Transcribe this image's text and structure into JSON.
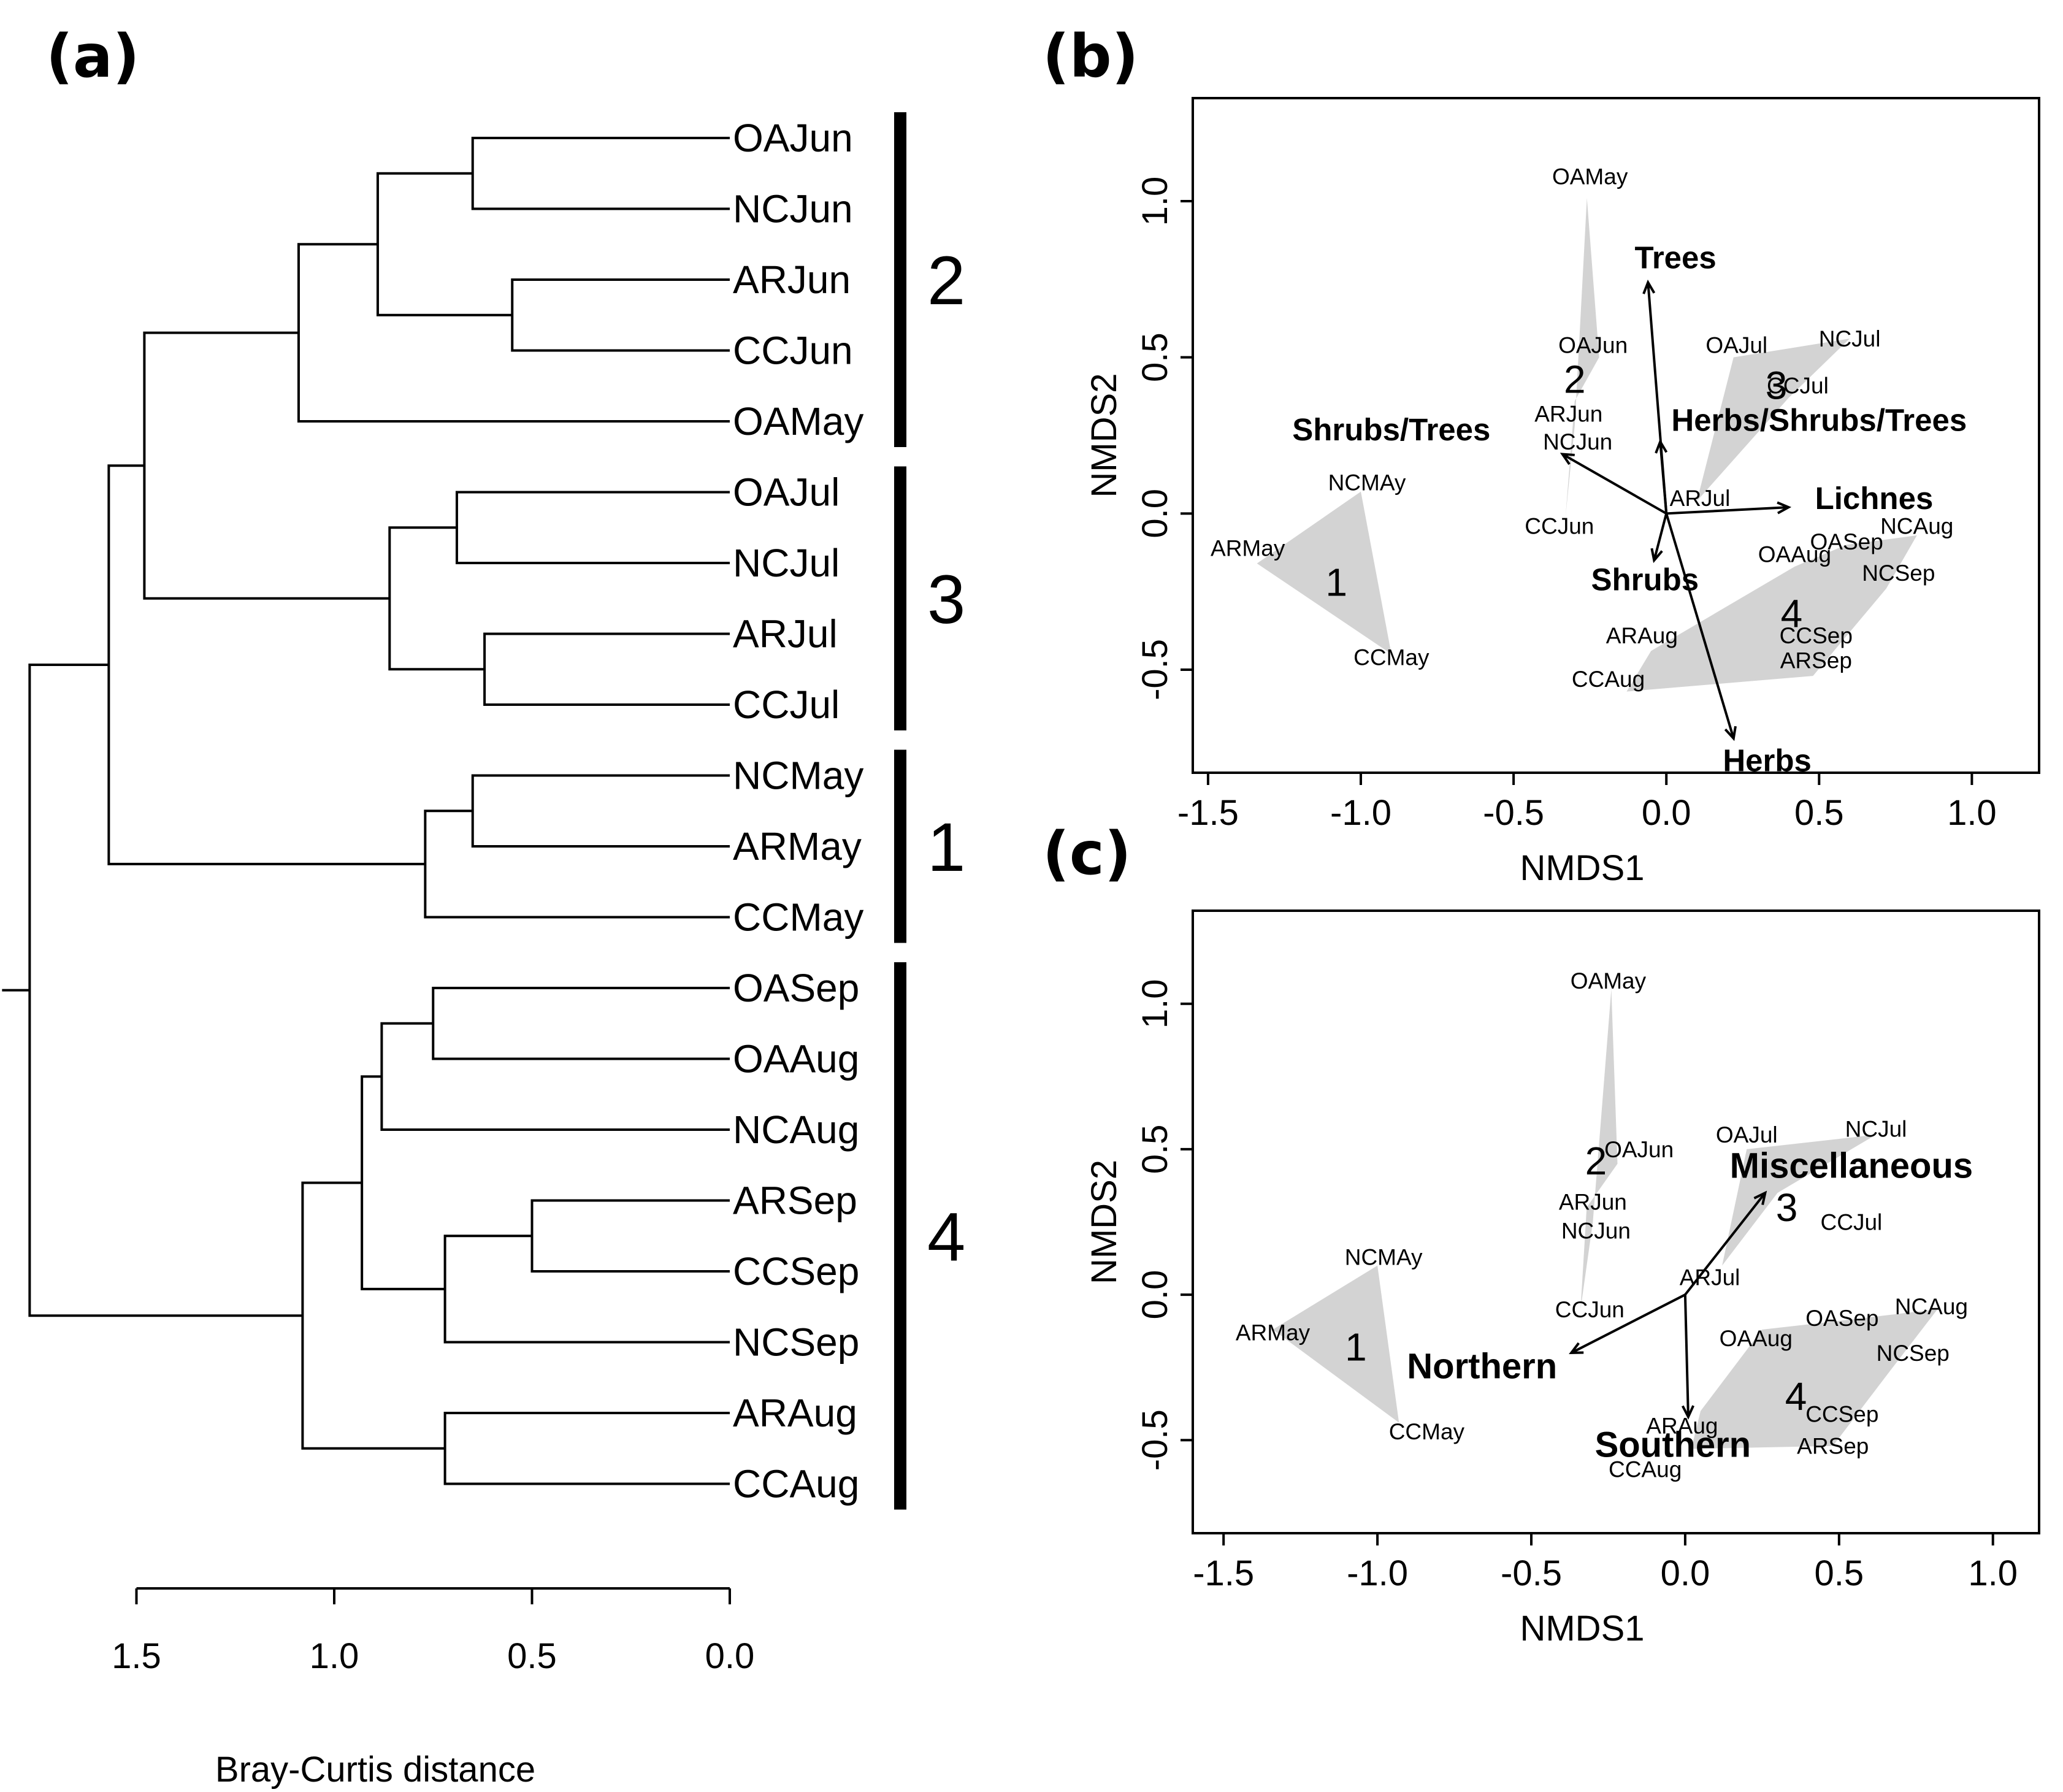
{
  "figure": {
    "panel_a": {
      "letter": "(a)"
    },
    "panel_b": {
      "letter": "(b)"
    },
    "panel_c": {
      "letter": "(c)"
    }
  },
  "chart_data": [
    {
      "panel": "a",
      "type": "dendrogram",
      "xlabel": "Bray-Curtis distance",
      "axis_range": [
        1.5,
        0.0
      ],
      "ticks": [
        1.5,
        1.0,
        0.5,
        0.0
      ],
      "tick_labels": [
        "1.5",
        "1.0",
        "0.5",
        "0.0"
      ],
      "leaves": [
        "OAJun",
        "NCJun",
        "ARJun",
        "CCJun",
        "OAMay",
        "OAJul",
        "NCJul",
        "ARJul",
        "CCJul",
        "NCMay",
        "ARMay",
        "CCMay",
        "OASep",
        "OAAug",
        "NCAug",
        "ARSep",
        "CCSep",
        "NCSep",
        "ARAug",
        "CCAug"
      ],
      "merges": [
        {
          "id": "m1",
          "left": "OAJun",
          "right": "NCJun",
          "height": 0.65
        },
        {
          "id": "m2",
          "left": "ARJun",
          "right": "CCJun",
          "height": 0.55
        },
        {
          "id": "m3",
          "left": "m1",
          "right": "m2",
          "height": 0.89
        },
        {
          "id": "m4",
          "left": "m3",
          "right": "OAMay",
          "height": 1.09
        },
        {
          "id": "m5",
          "left": "OAJul",
          "right": "NCJul",
          "height": 0.69
        },
        {
          "id": "m6",
          "left": "ARJul",
          "right": "CCJul",
          "height": 0.62
        },
        {
          "id": "m7",
          "left": "m5",
          "right": "m6",
          "height": 0.86
        },
        {
          "id": "m8",
          "left": "m4",
          "right": "m7",
          "height": 1.48
        },
        {
          "id": "m9",
          "left": "NCMay",
          "right": "ARMay",
          "height": 0.65
        },
        {
          "id": "m10",
          "left": "m9",
          "right": "CCMay",
          "height": 0.77
        },
        {
          "id": "m11",
          "left": "m8",
          "right": "m10",
          "height": 1.57
        },
        {
          "id": "m12",
          "left": "OASep",
          "right": "OAAug",
          "height": 0.75
        },
        {
          "id": "m13",
          "left": "m12",
          "right": "NCAug",
          "height": 0.88
        },
        {
          "id": "m14",
          "left": "ARSep",
          "right": "CCSep",
          "height": 0.5
        },
        {
          "id": "m15",
          "left": "m14",
          "right": "NCSep",
          "height": 0.72
        },
        {
          "id": "m16",
          "left": "m13",
          "right": "m15",
          "height": 0.93
        },
        {
          "id": "m17",
          "left": "ARAug",
          "right": "CCAug",
          "height": 0.72
        },
        {
          "id": "m18",
          "left": "m16",
          "right": "m17",
          "height": 1.08
        },
        {
          "id": "m19",
          "left": "m11",
          "right": "m18",
          "height": 1.77
        }
      ],
      "clusters": [
        {
          "label": "2",
          "from": "OAJun",
          "to": "OAMay"
        },
        {
          "label": "3",
          "from": "OAJul",
          "to": "CCJul"
        },
        {
          "label": "1",
          "from": "NCMay",
          "to": "CCMay"
        },
        {
          "label": "4",
          "from": "OASep",
          "to": "CCAug"
        }
      ]
    },
    {
      "panel": "b",
      "type": "scatter",
      "xlabel": "NMDS1",
      "ylabel": "NMDS2",
      "xlim": [
        -1.55,
        1.22
      ],
      "ylim": [
        -0.83,
        1.33
      ],
      "xticks": [
        -1.5,
        -1.0,
        -0.5,
        0.0,
        0.5,
        1.0
      ],
      "xtick_labels": [
        "-1.5",
        "-1.0",
        "-0.5",
        "0.0",
        "0.5",
        "1.0"
      ],
      "yticks": [
        -0.5,
        0.0,
        0.5,
        1.0
      ],
      "ytick_labels": [
        "-0.5",
        "0.0",
        "0.5",
        "1.0"
      ],
      "points": [
        {
          "label": "OAMay",
          "x": -0.25,
          "y": 1.08
        },
        {
          "label": "OAJun",
          "x": -0.24,
          "y": 0.54
        },
        {
          "label": "ARJun",
          "x": -0.32,
          "y": 0.32
        },
        {
          "label": "NCJun",
          "x": -0.29,
          "y": 0.23
        },
        {
          "label": "CCJun",
          "x": -0.35,
          "y": -0.04
        },
        {
          "label": "NCMAy",
          "x": -0.98,
          "y": 0.1
        },
        {
          "label": "ARMay",
          "x": -1.37,
          "y": -0.11
        },
        {
          "label": "CCMay",
          "x": -0.9,
          "y": -0.46
        },
        {
          "label": "OAJul",
          "x": 0.23,
          "y": 0.54
        },
        {
          "label": "NCJul",
          "x": 0.6,
          "y": 0.56
        },
        {
          "label": "CCJul",
          "x": 0.43,
          "y": 0.41
        },
        {
          "label": "ARJul",
          "x": 0.11,
          "y": 0.05
        },
        {
          "label": "OAAug",
          "x": 0.42,
          "y": -0.13
        },
        {
          "label": "OASep",
          "x": 0.59,
          "y": -0.09
        },
        {
          "label": "NCAug",
          "x": 0.82,
          "y": -0.04
        },
        {
          "label": "NCSep",
          "x": 0.76,
          "y": -0.19
        },
        {
          "label": "ARAug",
          "x": -0.08,
          "y": -0.39
        },
        {
          "label": "CCSep",
          "x": 0.49,
          "y": -0.39
        },
        {
          "label": "ARSep",
          "x": 0.49,
          "y": -0.47
        },
        {
          "label": "CCAug",
          "x": -0.19,
          "y": -0.53
        }
      ],
      "groups": [
        {
          "label": "1",
          "x": -1.08,
          "y": -0.22,
          "hull": [
            [
              -1.34,
              -0.16
            ],
            [
              -1.0,
              0.07
            ],
            [
              -0.9,
              -0.45
            ]
          ]
        },
        {
          "label": "2",
          "x": -0.3,
          "y": 0.43,
          "hull": [
            [
              -0.26,
              1.01
            ],
            [
              -0.22,
              0.5
            ],
            [
              -0.3,
              0.36
            ],
            [
              -0.33,
              -0.01
            ],
            [
              -0.3,
              0.28
            ]
          ]
        },
        {
          "label": "3",
          "x": 0.36,
          "y": 0.41,
          "hull": [
            [
              0.22,
              0.5
            ],
            [
              0.6,
              0.56
            ],
            [
              0.4,
              0.37
            ],
            [
              0.1,
              0.04
            ]
          ]
        },
        {
          "label": "4",
          "x": 0.41,
          "y": -0.32,
          "hull": [
            [
              0.42,
              -0.17
            ],
            [
              0.59,
              -0.1
            ],
            [
              0.82,
              -0.07
            ],
            [
              0.72,
              -0.24
            ],
            [
              0.48,
              -0.52
            ],
            [
              -0.13,
              -0.57
            ],
            [
              -0.05,
              -0.44
            ]
          ]
        }
      ],
      "vectors": [
        {
          "label": "Trees",
          "x": -0.06,
          "y": 0.74,
          "label_x": 0.03,
          "label_y": 0.82
        },
        {
          "label": "Shrubs/Trees",
          "x": -0.34,
          "y": 0.19,
          "label_x": -0.9,
          "label_y": 0.27
        },
        {
          "label": "Herbs/Shrubs/Trees",
          "x": -0.02,
          "y": 0.23,
          "label_x": 0.5,
          "label_y": 0.3
        },
        {
          "label": "Lichnes",
          "x": 0.4,
          "y": 0.02,
          "label_x": 0.68,
          "label_y": 0.05
        },
        {
          "label": "Shrubs",
          "x": -0.04,
          "y": -0.15,
          "label_x": -0.07,
          "label_y": -0.21
        },
        {
          "label": "Herbs",
          "x": 0.22,
          "y": -0.72,
          "label_x": 0.33,
          "label_y": -0.79
        }
      ]
    },
    {
      "panel": "c",
      "type": "scatter",
      "xlabel": "NMDS1",
      "ylabel": "NMDS2",
      "xlim": [
        -1.6,
        1.15
      ],
      "ylim": [
        -0.82,
        1.32
      ],
      "xticks": [
        -1.5,
        -1.0,
        -0.5,
        0.0,
        0.5,
        1.0
      ],
      "xtick_labels": [
        "-1.5",
        "-1.0",
        "-0.5",
        "0.0",
        "0.5",
        "1.0"
      ],
      "yticks": [
        -0.5,
        0.0,
        0.5,
        1.0
      ],
      "ytick_labels": [
        "-0.5",
        "0.0",
        "0.5",
        "1.0"
      ],
      "points": [
        {
          "label": "OAMay",
          "x": -0.25,
          "y": 1.08
        },
        {
          "label": "OAJun",
          "x": -0.15,
          "y": 0.5
        },
        {
          "label": "ARJun",
          "x": -0.3,
          "y": 0.32
        },
        {
          "label": "NCJun",
          "x": -0.29,
          "y": 0.22
        },
        {
          "label": "CCJun",
          "x": -0.31,
          "y": -0.05
        },
        {
          "label": "NCMAy",
          "x": -0.98,
          "y": 0.13
        },
        {
          "label": "ARMay",
          "x": -1.34,
          "y": -0.13
        },
        {
          "label": "CCMay",
          "x": -0.84,
          "y": -0.47
        },
        {
          "label": "OAJul",
          "x": 0.2,
          "y": 0.55
        },
        {
          "label": "NCJul",
          "x": 0.62,
          "y": 0.57
        },
        {
          "label": "CCJul",
          "x": 0.54,
          "y": 0.25
        },
        {
          "label": "ARJul",
          "x": 0.08,
          "y": 0.06
        },
        {
          "label": "OAAug",
          "x": 0.23,
          "y": -0.15
        },
        {
          "label": "OASep",
          "x": 0.51,
          "y": -0.08
        },
        {
          "label": "NCAug",
          "x": 0.8,
          "y": -0.04
        },
        {
          "label": "NCSep",
          "x": 0.74,
          "y": -0.2
        },
        {
          "label": "ARAug",
          "x": -0.01,
          "y": -0.45
        },
        {
          "label": "CCSep",
          "x": 0.51,
          "y": -0.41
        },
        {
          "label": "ARSep",
          "x": 0.48,
          "y": -0.52
        },
        {
          "label": "CCAug",
          "x": -0.13,
          "y": -0.6
        }
      ],
      "groups": [
        {
          "label": "1",
          "x": -1.07,
          "y": -0.18,
          "hull": [
            [
              -1.34,
              -0.12
            ],
            [
              -1.0,
              0.1
            ],
            [
              -0.93,
              -0.44
            ]
          ]
        },
        {
          "label": "2",
          "x": -0.29,
          "y": 0.46,
          "hull": [
            [
              -0.24,
              1.05
            ],
            [
              -0.22,
              0.45
            ],
            [
              -0.32,
              0.3
            ],
            [
              -0.34,
              -0.05
            ],
            [
              -0.3,
              0.25
            ]
          ]
        },
        {
          "label": "3",
          "x": 0.33,
          "y": 0.3,
          "hull": [
            [
              0.2,
              0.5
            ],
            [
              0.62,
              0.55
            ],
            [
              0.3,
              0.35
            ],
            [
              0.12,
              0.1
            ]
          ]
        },
        {
          "label": "4",
          "x": 0.36,
          "y": -0.35,
          "hull": [
            [
              0.25,
              -0.12
            ],
            [
              0.5,
              -0.09
            ],
            [
              0.82,
              -0.05
            ],
            [
              0.66,
              -0.27
            ],
            [
              0.48,
              -0.52
            ],
            [
              0.02,
              -0.53
            ],
            [
              0.05,
              -0.4
            ]
          ]
        }
      ],
      "vectors": [
        {
          "label": "Miscellaneous",
          "x": 0.26,
          "y": 0.35,
          "label_x": 0.54,
          "label_y": 0.44
        },
        {
          "label": "Northern",
          "x": -0.37,
          "y": -0.2,
          "label_x": -0.66,
          "label_y": -0.25
        },
        {
          "label": "Southern",
          "x": 0.01,
          "y": -0.42,
          "label_x": -0.04,
          "label_y": -0.52
        }
      ]
    }
  ]
}
